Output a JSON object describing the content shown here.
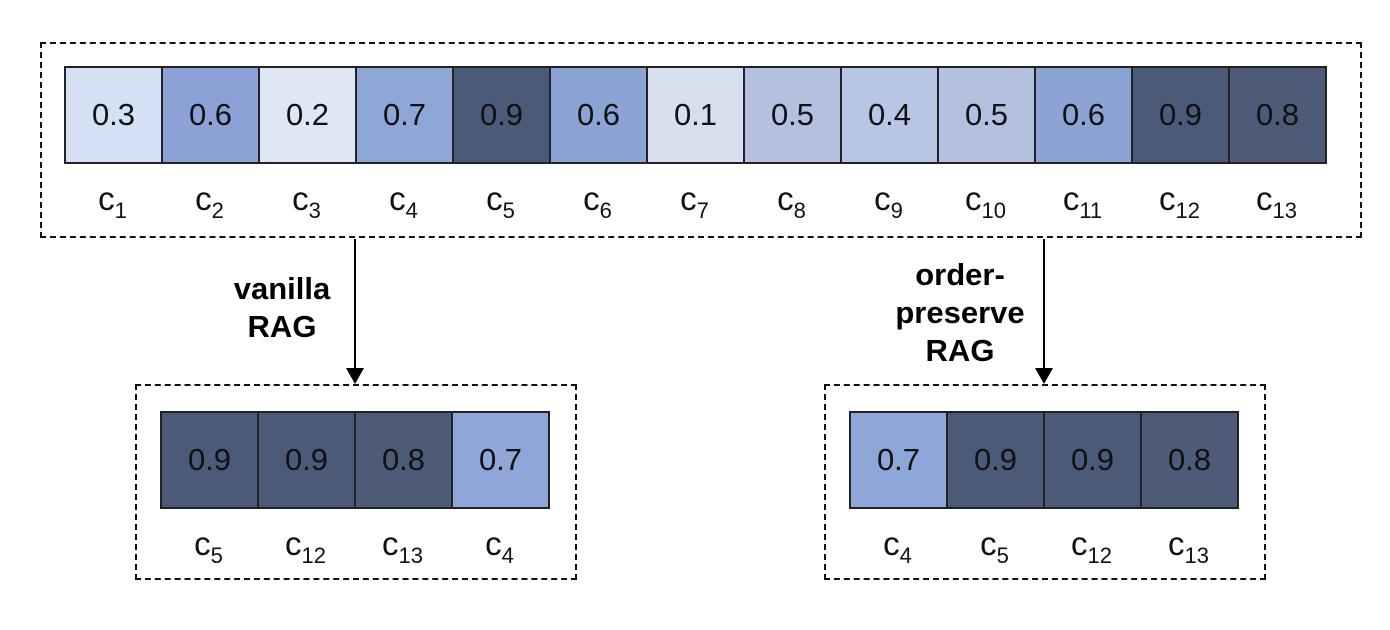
{
  "top": {
    "cells": [
      {
        "value": "0.3",
        "label": "c",
        "sub": "1",
        "color": "#d4e1f5"
      },
      {
        "value": "0.6",
        "label": "c",
        "sub": "2",
        "color": "#8ca2d6"
      },
      {
        "value": "0.2",
        "label": "c",
        "sub": "3",
        "color": "#dfe6f4"
      },
      {
        "value": "0.7",
        "label": "c",
        "sub": "4",
        "color": "#8ea6d8"
      },
      {
        "value": "0.9",
        "label": "c",
        "sub": "5",
        "color": "#4b5a78"
      },
      {
        "value": "0.6",
        "label": "c",
        "sub": "6",
        "color": "#8ca3d6"
      },
      {
        "value": "0.1",
        "label": "c",
        "sub": "7",
        "color": "#d6e0ef"
      },
      {
        "value": "0.5",
        "label": "c",
        "sub": "8",
        "color": "#b3c0e0"
      },
      {
        "value": "0.4",
        "label": "c",
        "sub": "9",
        "color": "#b8c6e6"
      },
      {
        "value": "0.5",
        "label": "c",
        "sub": "10",
        "color": "#b3c0e0"
      },
      {
        "value": "0.6",
        "label": "c",
        "sub": "11",
        "color": "#8ca3d6"
      },
      {
        "value": "0.9",
        "label": "c",
        "sub": "12",
        "color": "#4b5a78"
      },
      {
        "value": "0.8",
        "label": "c",
        "sub": "13",
        "color": "#4d5b79"
      }
    ]
  },
  "left_method": {
    "line1": "vanilla",
    "line2": "RAG"
  },
  "right_method": {
    "line1": "order-",
    "line2": "preserve",
    "line3": "RAG"
  },
  "left_result": {
    "cells": [
      {
        "value": "0.9",
        "label": "c",
        "sub": "5",
        "color": "#4b5a78"
      },
      {
        "value": "0.9",
        "label": "c",
        "sub": "12",
        "color": "#4b5a78"
      },
      {
        "value": "0.8",
        "label": "c",
        "sub": "13",
        "color": "#4d5b79"
      },
      {
        "value": "0.7",
        "label": "c",
        "sub": "4",
        "color": "#8ea6d8"
      }
    ]
  },
  "right_result": {
    "cells": [
      {
        "value": "0.7",
        "label": "c",
        "sub": "4",
        "color": "#8ea6d8"
      },
      {
        "value": "0.9",
        "label": "c",
        "sub": "5",
        "color": "#4b5a78"
      },
      {
        "value": "0.9",
        "label": "c",
        "sub": "12",
        "color": "#4b5a78"
      },
      {
        "value": "0.8",
        "label": "c",
        "sub": "13",
        "color": "#4d5b79"
      }
    ]
  }
}
